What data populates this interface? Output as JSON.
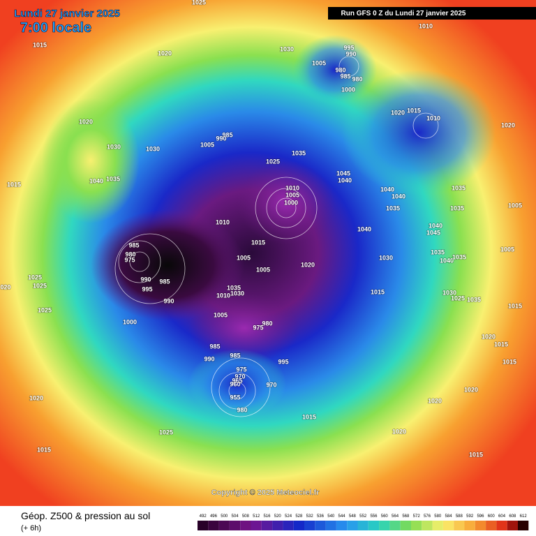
{
  "header": {
    "date": "Lundi 27 janvier 2025",
    "time": "7:00 locale",
    "run": "Run GFS 0 Z du Lundi 27 janvier 2025"
  },
  "map": {
    "pressure_labels": [
      1025,
      1010,
      1015,
      1020,
      1030,
      995,
      990,
      1005,
      980,
      985,
      980,
      1000,
      1020,
      1030,
      1030,
      985,
      990,
      1005,
      1035,
      1025,
      1020,
      1015,
      1010,
      1020,
      1015,
      1040,
      1035,
      1045,
      1040,
      1010,
      1005,
      1000,
      1040,
      1040,
      1035,
      1035,
      1035,
      1005,
      1010,
      1040,
      1040,
      1045,
      1015,
      985,
      980,
      975,
      1005,
      1005,
      1020,
      1030,
      1035,
      1040,
      1035,
      1005,
      990,
      995,
      985,
      1025,
      1025,
      "020",
      1015,
      1035,
      1030,
      1010,
      1030,
      1025,
      1035,
      1015,
      1025,
      990,
      1000,
      1005,
      980,
      975,
      1020,
      1015,
      985,
      985,
      990,
      995,
      1015,
      975,
      970,
      965,
      960,
      970,
      955,
      1020,
      1020,
      1020,
      980,
      1015,
      1025,
      1020,
      1015,
      1015
    ]
  },
  "footer": {
    "title": "Géop. Z500 & pression au sol",
    "step": "(+ 6h)",
    "copyright": "Copyright © 2025 Meteociel.fr",
    "scale": [
      492,
      496,
      500,
      504,
      508,
      512,
      516,
      520,
      524,
      528,
      532,
      536,
      540,
      544,
      548,
      552,
      556,
      560,
      564,
      568,
      572,
      576,
      580,
      584,
      588,
      592,
      596,
      600,
      604,
      608,
      612
    ]
  }
}
